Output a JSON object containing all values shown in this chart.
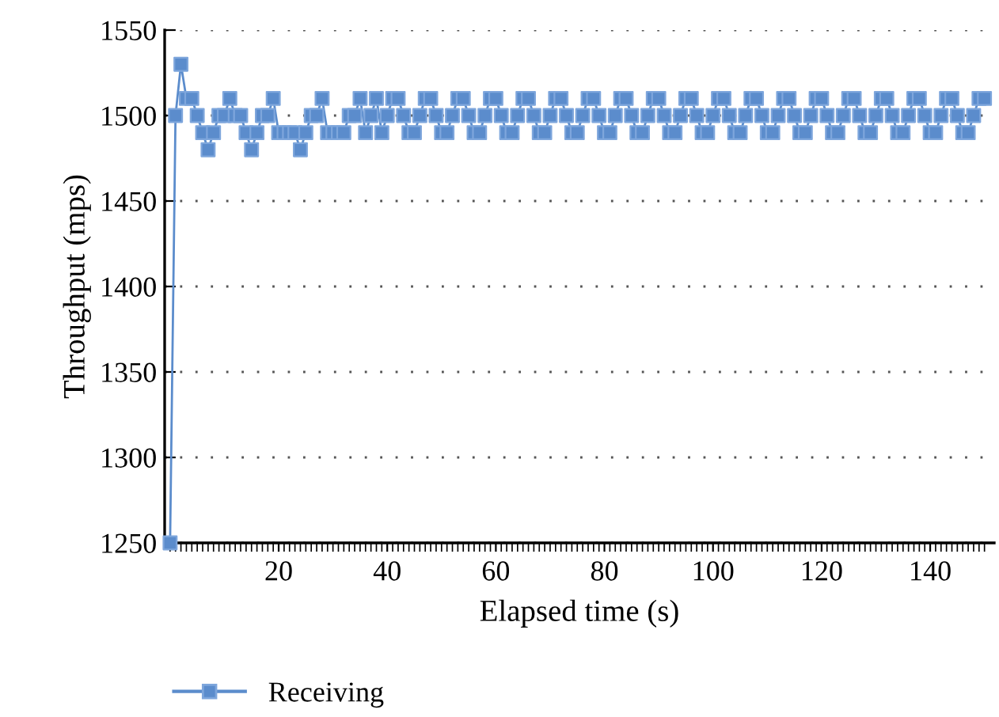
{
  "chart_data": {
    "type": "line",
    "xlabel": "Elapsed time (s)",
    "ylabel": "Throughput (mps)",
    "x": [
      0,
      1,
      2,
      3,
      4,
      5,
      6,
      7,
      8,
      9,
      10,
      11,
      12,
      13,
      14,
      15,
      16,
      17,
      18,
      19,
      20,
      21,
      22,
      23,
      24,
      25,
      26,
      27,
      28,
      29,
      30,
      31,
      32,
      33,
      34,
      35,
      36,
      37,
      38,
      39,
      40,
      41,
      42,
      43,
      44,
      45,
      46,
      47,
      48,
      49,
      50,
      51,
      52,
      53,
      54,
      55,
      56,
      57,
      58,
      59,
      60,
      61,
      62,
      63,
      64,
      65,
      66,
      67,
      68,
      69,
      70,
      71,
      72,
      73,
      74,
      75,
      76,
      77,
      78,
      79,
      80,
      81,
      82,
      83,
      84,
      85,
      86,
      87,
      88,
      89,
      90,
      91,
      92,
      93,
      94,
      95,
      96,
      97,
      98,
      99,
      100,
      101,
      102,
      103,
      104,
      105,
      106,
      107,
      108,
      109,
      110,
      111,
      112,
      113,
      114,
      115,
      116,
      117,
      118,
      119,
      120,
      121,
      122,
      123,
      124,
      125,
      126,
      127,
      128,
      129,
      130,
      131,
      132,
      133,
      134,
      135,
      136,
      137,
      138,
      139,
      140,
      141,
      142,
      143,
      144,
      145,
      146,
      147,
      148,
      149,
      150
    ],
    "series": [
      {
        "name": "Receiving",
        "color": "#5b8ccc",
        "values": [
          1250,
          1500,
          1530,
          1510,
          1510,
          1500,
          1490,
          1480,
          1490,
          1500,
          1500,
          1510,
          1500,
          1500,
          1490,
          1480,
          1490,
          1500,
          1500,
          1510,
          1490,
          1490,
          1490,
          1490,
          1480,
          1490,
          1500,
          1500,
          1510,
          1490,
          1490,
          1490,
          1490,
          1500,
          1500,
          1510,
          1490,
          1500,
          1510,
          1490,
          1500,
          1510,
          1510,
          1500,
          1490,
          1490,
          1500,
          1510,
          1510,
          1500,
          1490,
          1490,
          1500,
          1510,
          1510,
          1500,
          1490,
          1490,
          1500,
          1510,
          1510,
          1500,
          1490,
          1490,
          1500,
          1510,
          1510,
          1500,
          1490,
          1490,
          1500,
          1510,
          1510,
          1500,
          1490,
          1490,
          1500,
          1510,
          1510,
          1500,
          1490,
          1490,
          1500,
          1510,
          1510,
          1500,
          1490,
          1490,
          1500,
          1510,
          1510,
          1500,
          1490,
          1490,
          1500,
          1510,
          1510,
          1500,
          1490,
          1490,
          1500,
          1510,
          1510,
          1500,
          1490,
          1490,
          1500,
          1510,
          1510,
          1500,
          1490,
          1490,
          1500,
          1510,
          1510,
          1500,
          1490,
          1490,
          1500,
          1510,
          1510,
          1500,
          1490,
          1490,
          1500,
          1510,
          1510,
          1500,
          1490,
          1490,
          1500,
          1510,
          1510,
          1500,
          1490,
          1490,
          1500,
          1510,
          1510,
          1500,
          1490,
          1490,
          1500,
          1510,
          1510,
          1500,
          1490,
          1490,
          1500,
          1510,
          1510
        ]
      }
    ],
    "xlim": [
      -1,
      151.8
    ],
    "xticks": [
      20,
      40,
      60,
      80,
      100,
      120,
      140
    ],
    "ylim": [
      1250,
      1550
    ],
    "yticks": [
      1250,
      1300,
      1350,
      1400,
      1450,
      1500,
      1550
    ],
    "grid": "y",
    "legend": "bottom",
    "marker": "square",
    "line_style": "solid"
  }
}
